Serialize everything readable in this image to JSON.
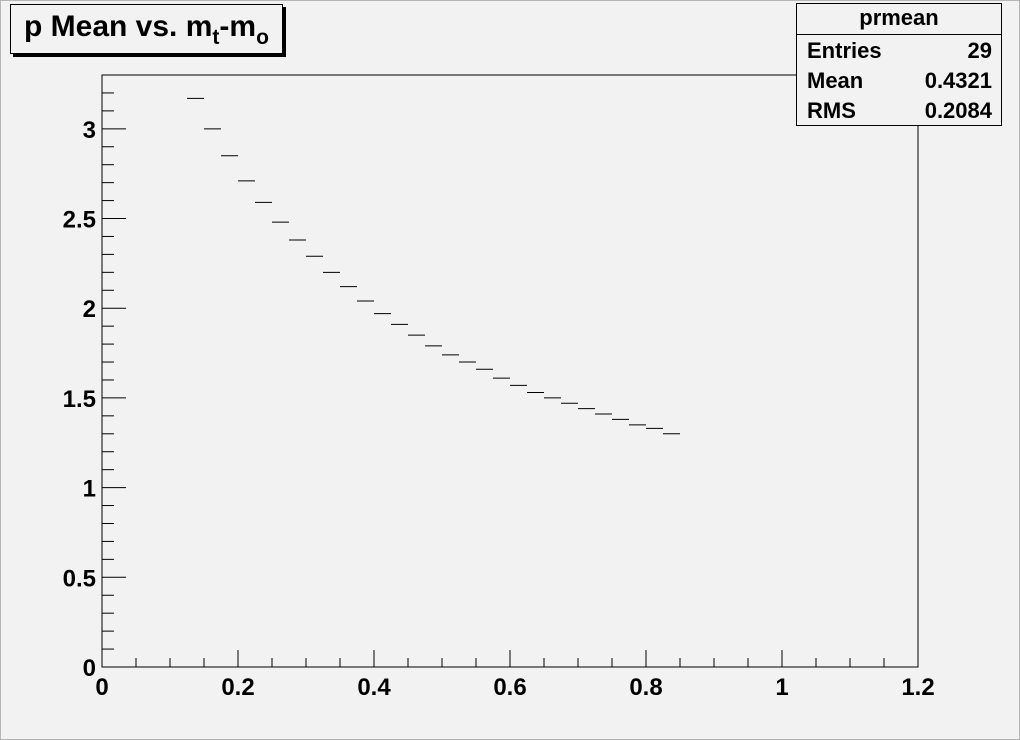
{
  "title": {
    "prefix": "p Mean vs. m",
    "sub1": "t",
    "mid": "-m",
    "sub2": "o"
  },
  "stats": {
    "name": "prmean",
    "rows": [
      {
        "label": "Entries",
        "value": "29"
      },
      {
        "label": "Mean",
        "value": "0.4321"
      },
      {
        "label": "RMS",
        "value": "0.2084"
      }
    ]
  },
  "chart_data": {
    "type": "scatter",
    "title": "p Mean vs. mt-mo",
    "xlabel": "",
    "ylabel": "",
    "xlim": [
      0,
      1.2
    ],
    "ylim": [
      0,
      3.3
    ],
    "x_ticks": [
      "0",
      "0.2",
      "0.4",
      "0.6",
      "0.8",
      "1",
      "1.2"
    ],
    "y_ticks": [
      "0",
      "0.5",
      "1",
      "1.5",
      "2",
      "2.5",
      "3"
    ],
    "bin_width": 0.025,
    "grid": false,
    "legend": "none",
    "series": [
      {
        "x": [
          0.1375,
          0.1625,
          0.1875,
          0.2125,
          0.2375,
          0.2625,
          0.2875,
          0.3125,
          0.3375,
          0.3625,
          0.3875,
          0.4125,
          0.4375,
          0.4625,
          0.4875,
          0.5125,
          0.5375,
          0.5625,
          0.5875,
          0.6125,
          0.6375,
          0.6625,
          0.6875,
          0.7125,
          0.7375,
          0.7625,
          0.7875,
          0.8125,
          0.8375
        ],
        "y": [
          3.17,
          3.0,
          2.85,
          2.71,
          2.59,
          2.48,
          2.38,
          2.29,
          2.2,
          2.12,
          2.04,
          1.97,
          1.91,
          1.85,
          1.79,
          1.74,
          1.7,
          1.66,
          1.61,
          1.57,
          1.53,
          1.5,
          1.47,
          1.44,
          1.41,
          1.38,
          1.35,
          1.33,
          1.3
        ]
      }
    ]
  }
}
